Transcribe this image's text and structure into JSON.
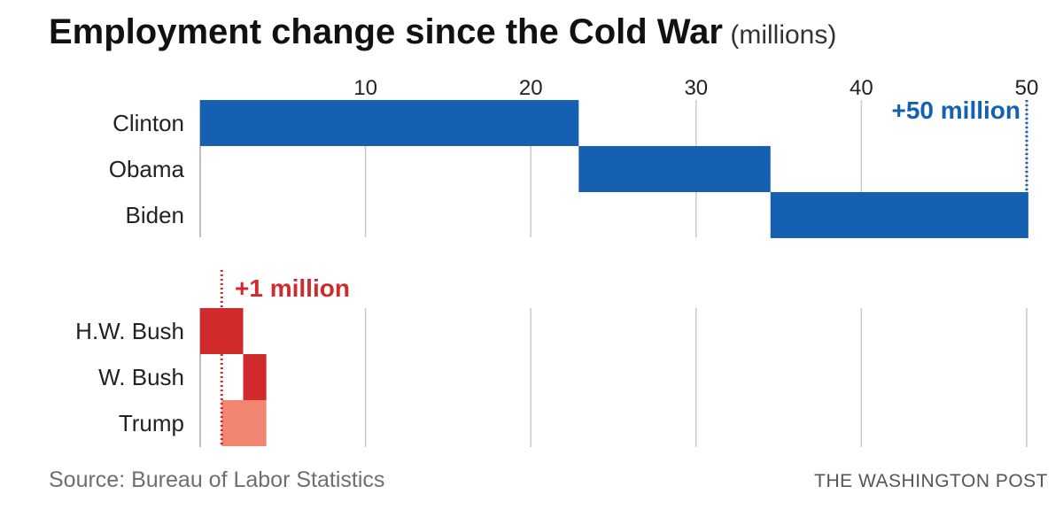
{
  "header": {
    "title": "Employment change since the Cold War",
    "subtitle": "(millions)"
  },
  "footer": {
    "source": "Source: Bureau of Labor Statistics",
    "credit": "THE WASHINGTON POST"
  },
  "chart_data": [
    {
      "type": "bar",
      "subtype": "waterfall",
      "axis": {
        "ticks": [
          10,
          20,
          30,
          40,
          50
        ],
        "xlim": [
          0,
          50.2
        ]
      },
      "categories": [
        "Clinton",
        "Obama",
        "Biden"
      ],
      "segments": [
        {
          "label": "Clinton",
          "start": 0,
          "end": 22.9,
          "value": 22.9
        },
        {
          "label": "Obama",
          "start": 22.9,
          "end": 34.5,
          "value": 11.6
        },
        {
          "label": "Biden",
          "start": 34.5,
          "end": 50.1,
          "value": 15.6
        }
      ],
      "color": "#1560b0",
      "annotation": {
        "text": "+50 million",
        "x": 50,
        "color": "#1560b0"
      }
    },
    {
      "type": "bar",
      "subtype": "waterfall",
      "axis": {
        "ticks": [
          10,
          20,
          30,
          40,
          50
        ],
        "xlim": [
          0,
          50.2
        ]
      },
      "categories": [
        "H.W. Bush",
        "W. Bush",
        "Trump"
      ],
      "segments": [
        {
          "label": "H.W. Bush",
          "start": 0,
          "end": 2.6,
          "value": 2.6,
          "color": "#d12a2d"
        },
        {
          "label": "W. Bush",
          "start": 2.6,
          "end": 4.0,
          "value": 1.4,
          "color": "#d12a2d"
        },
        {
          "label": "Trump",
          "start": 4.0,
          "end": 1.3,
          "value": -2.7,
          "color": "#f28572"
        }
      ],
      "annotation": {
        "text": "+1 million",
        "x": 1.3,
        "color": "#d12a2d"
      }
    }
  ]
}
